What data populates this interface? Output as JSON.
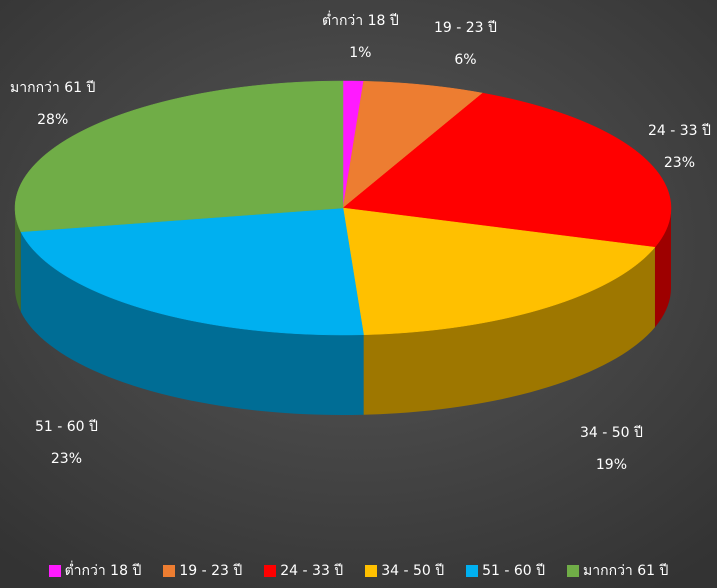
{
  "chart_data": {
    "type": "pie",
    "style": "3d",
    "start_angle_deg": 0,
    "direction": "clockwise",
    "legend_position": "bottom",
    "categories": [
      "ต่ำกว่า 18 ปี",
      "19 - 23 ปี",
      "24 - 33 ปี",
      "34 - 50 ปี",
      "51 - 60 ปี",
      "มากกว่า 61 ปี"
    ],
    "values": [
      1,
      6,
      23,
      19,
      23,
      28
    ],
    "value_labels": [
      "1%",
      "6%",
      "23%",
      "19%",
      "23%",
      "28%"
    ],
    "colors": [
      "#ff1aff",
      "#ed7d31",
      "#ff0000",
      "#ffc000",
      "#00b0f0",
      "#70ad47"
    ]
  }
}
